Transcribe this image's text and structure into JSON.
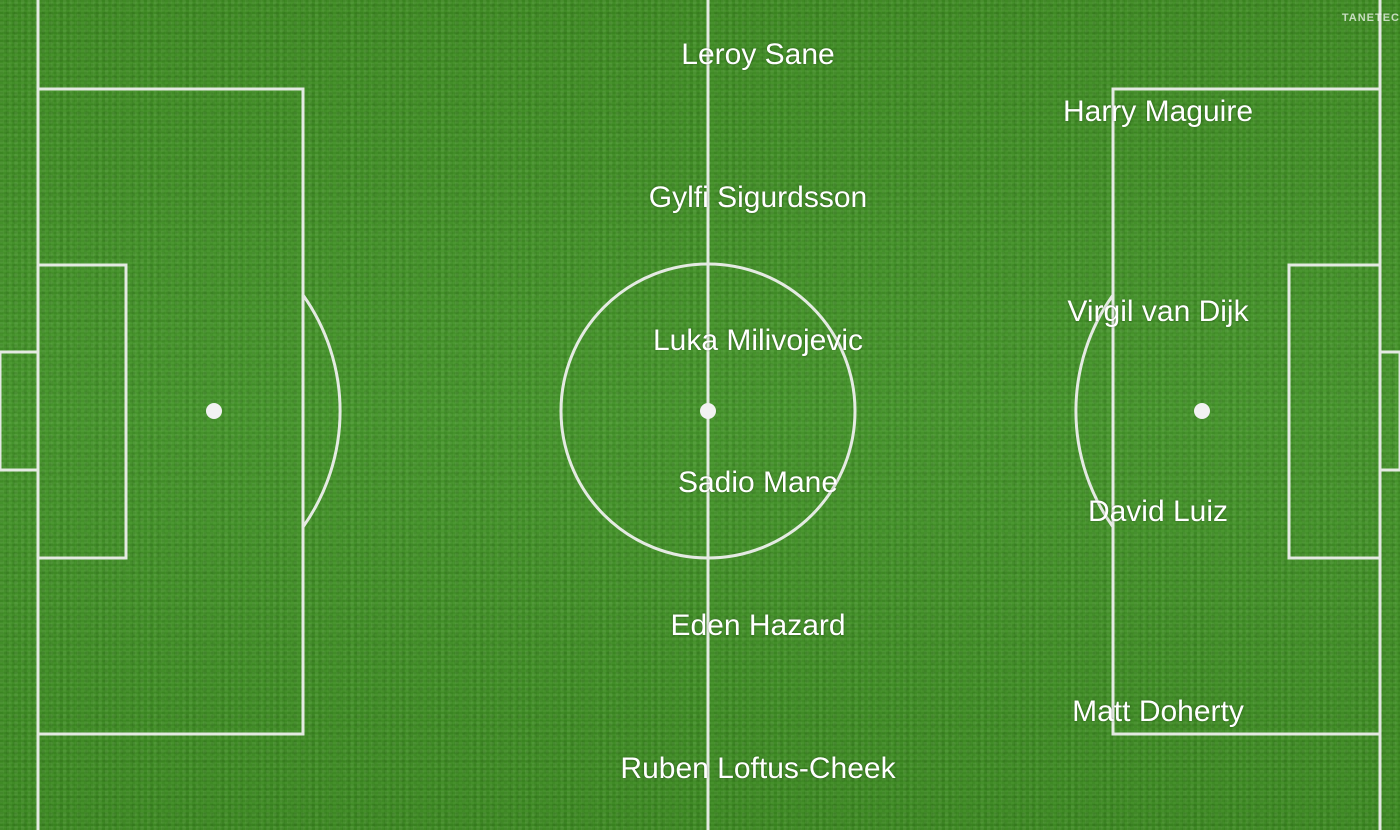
{
  "watermark": "TANETEC",
  "line_color": "#f2f2f2",
  "players": {
    "midfield": [
      "Leroy Sane",
      "Gylfi Sigurdsson",
      "Luka Milivojevic",
      "Sadio Mane",
      "Eden Hazard",
      "Ruben Loftus-Cheek"
    ],
    "defense": [
      "Harry Maguire",
      "Virgil van Dijk",
      "David Luiz",
      "Matt Doherty"
    ]
  }
}
